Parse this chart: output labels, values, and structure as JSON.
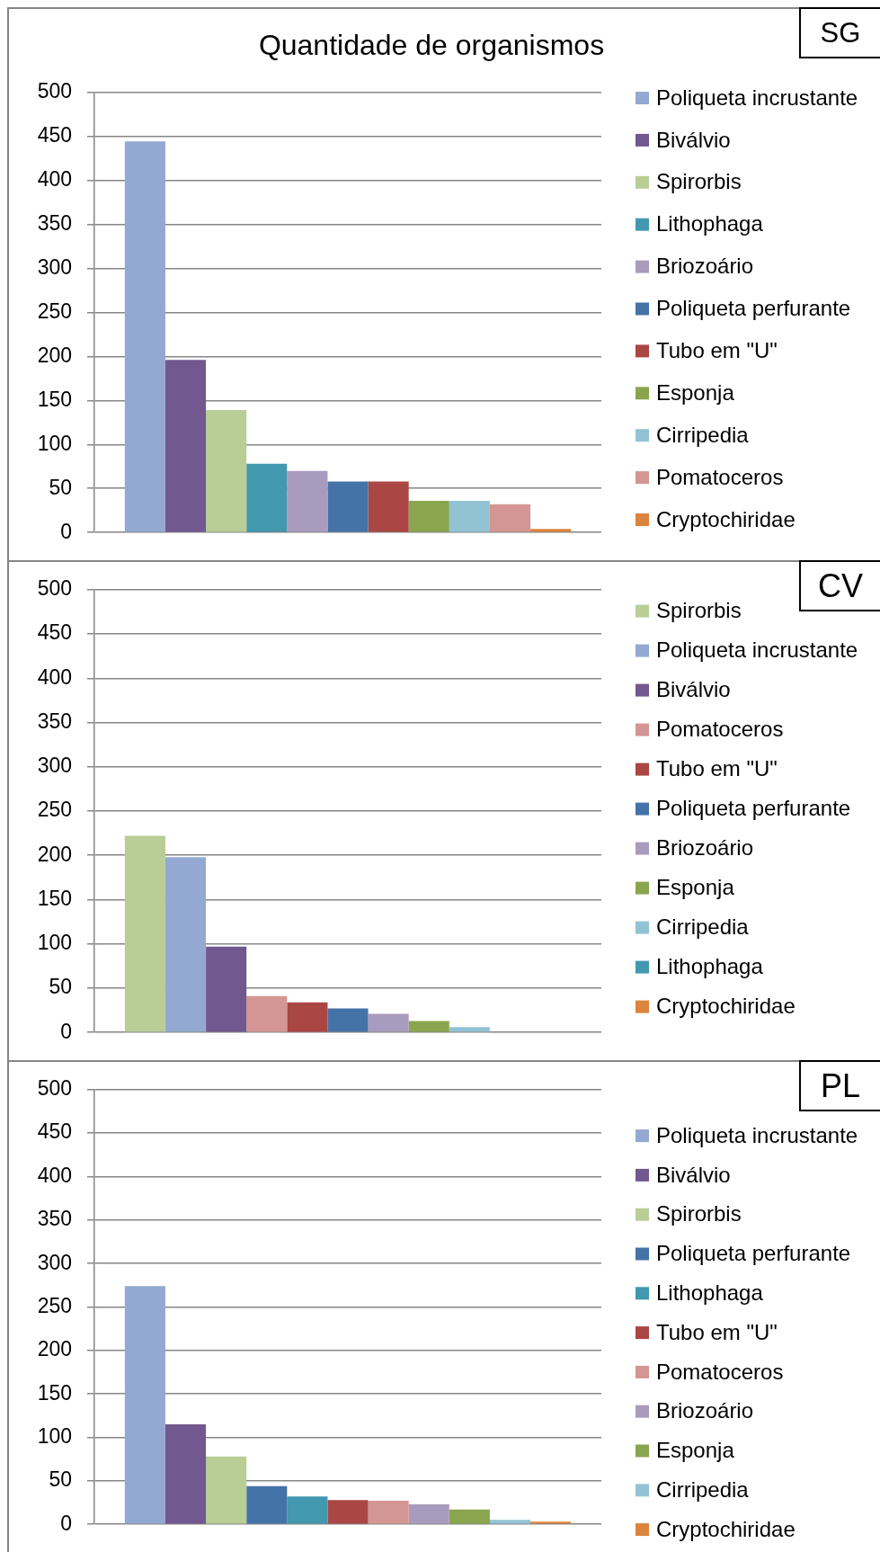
{
  "chart_data": [
    {
      "type": "bar",
      "title": "Quantidade de organismos",
      "annotations": [
        "SG"
      ],
      "categories": [
        null
      ],
      "series": [
        {
          "name": "Poliqueta incrustante",
          "color": "#93a9d1",
          "values": [
            444
          ]
        },
        {
          "name": "Biválvio",
          "color": "#71588f",
          "values": [
            196
          ]
        },
        {
          "name": "Spirorbis",
          "color": "#b9cd96",
          "values": [
            139
          ]
        },
        {
          "name": "Lithophaga",
          "color": "#4198af",
          "values": [
            78
          ]
        },
        {
          "name": "Briozoário",
          "color": "#a99bbd",
          "values": [
            70
          ]
        },
        {
          "name": "Poliqueta perfurante",
          "color": "#4572a7",
          "values": [
            58
          ]
        },
        {
          "name": "Tubo em \"U\"",
          "color": "#aa4643",
          "values": [
            58
          ]
        },
        {
          "name": "Esponja",
          "color": "#89a54e",
          "values": [
            36
          ]
        },
        {
          "name": "Cirripedia",
          "color": "#92c3d4",
          "values": [
            36
          ]
        },
        {
          "name": "Pomatoceros",
          "color": "#d49692",
          "values": [
            32
          ]
        },
        {
          "name": "Cryptochiridae",
          "color": "#db843d",
          "values": [
            4
          ]
        }
      ],
      "ylim": [
        0,
        500
      ],
      "yticks": [
        0,
        50,
        100,
        150,
        200,
        250,
        300,
        350,
        400,
        450,
        500
      ],
      "grid": "y",
      "legend": "right",
      "tick_labels": "y"
    },
    {
      "type": "bar",
      "annotations": [
        "CV"
      ],
      "categories": [
        null
      ],
      "series": [
        {
          "name": "Spirorbis",
          "color": "#b9cd96",
          "values": [
            222
          ]
        },
        {
          "name": "Poliqueta incrustante",
          "color": "#93a9d1",
          "values": [
            198
          ]
        },
        {
          "name": "Biválvio",
          "color": "#71588f",
          "values": [
            97
          ]
        },
        {
          "name": "Pomatoceros",
          "color": "#d49692",
          "values": [
            41
          ]
        },
        {
          "name": "Tubo em \"U\"",
          "color": "#aa4643",
          "values": [
            34
          ]
        },
        {
          "name": "Poliqueta perfurante",
          "color": "#4572a7",
          "values": [
            27
          ]
        },
        {
          "name": "Briozoário",
          "color": "#a99bbd",
          "values": [
            21
          ]
        },
        {
          "name": "Esponja",
          "color": "#89a54e",
          "values": [
            13
          ]
        },
        {
          "name": "Cirripedia",
          "color": "#92c3d4",
          "values": [
            6
          ]
        },
        {
          "name": "Lithophaga",
          "color": "#4198af",
          "values": [
            0
          ]
        },
        {
          "name": "Cryptochiridae",
          "color": "#db843d",
          "values": [
            0
          ]
        }
      ],
      "ylim": [
        0,
        500
      ],
      "yticks": [
        0,
        50,
        100,
        150,
        200,
        250,
        300,
        350,
        400,
        450,
        500
      ],
      "grid": "y",
      "legend": "right",
      "tick_labels": "y"
    },
    {
      "type": "bar",
      "annotations": [
        "PL"
      ],
      "categories": [
        null
      ],
      "series": [
        {
          "name": "Poliqueta incrustante",
          "color": "#93a9d1",
          "values": [
            274
          ]
        },
        {
          "name": "Biválvio",
          "color": "#71588f",
          "values": [
            115
          ]
        },
        {
          "name": "Spirorbis",
          "color": "#b9cd96",
          "values": [
            78
          ]
        },
        {
          "name": "Poliqueta perfurante",
          "color": "#4572a7",
          "values": [
            44
          ]
        },
        {
          "name": "Lithophaga",
          "color": "#4198af",
          "values": [
            32
          ]
        },
        {
          "name": "Tubo em \"U\"",
          "color": "#aa4643",
          "values": [
            28
          ]
        },
        {
          "name": "Pomatoceros",
          "color": "#d49692",
          "values": [
            27
          ]
        },
        {
          "name": "Briozoário",
          "color": "#a99bbd",
          "values": [
            23
          ]
        },
        {
          "name": "Esponja",
          "color": "#89a54e",
          "values": [
            17
          ]
        },
        {
          "name": "Cirripedia",
          "color": "#92c3d4",
          "values": [
            5
          ]
        },
        {
          "name": "Cryptochiridae",
          "color": "#db843d",
          "values": [
            3
          ]
        }
      ],
      "ylim": [
        0,
        500
      ],
      "yticks": [
        0,
        50,
        100,
        150,
        200,
        250,
        300,
        350,
        400,
        450,
        500
      ],
      "grid": "y",
      "legend": "right",
      "tick_labels": "y"
    }
  ]
}
